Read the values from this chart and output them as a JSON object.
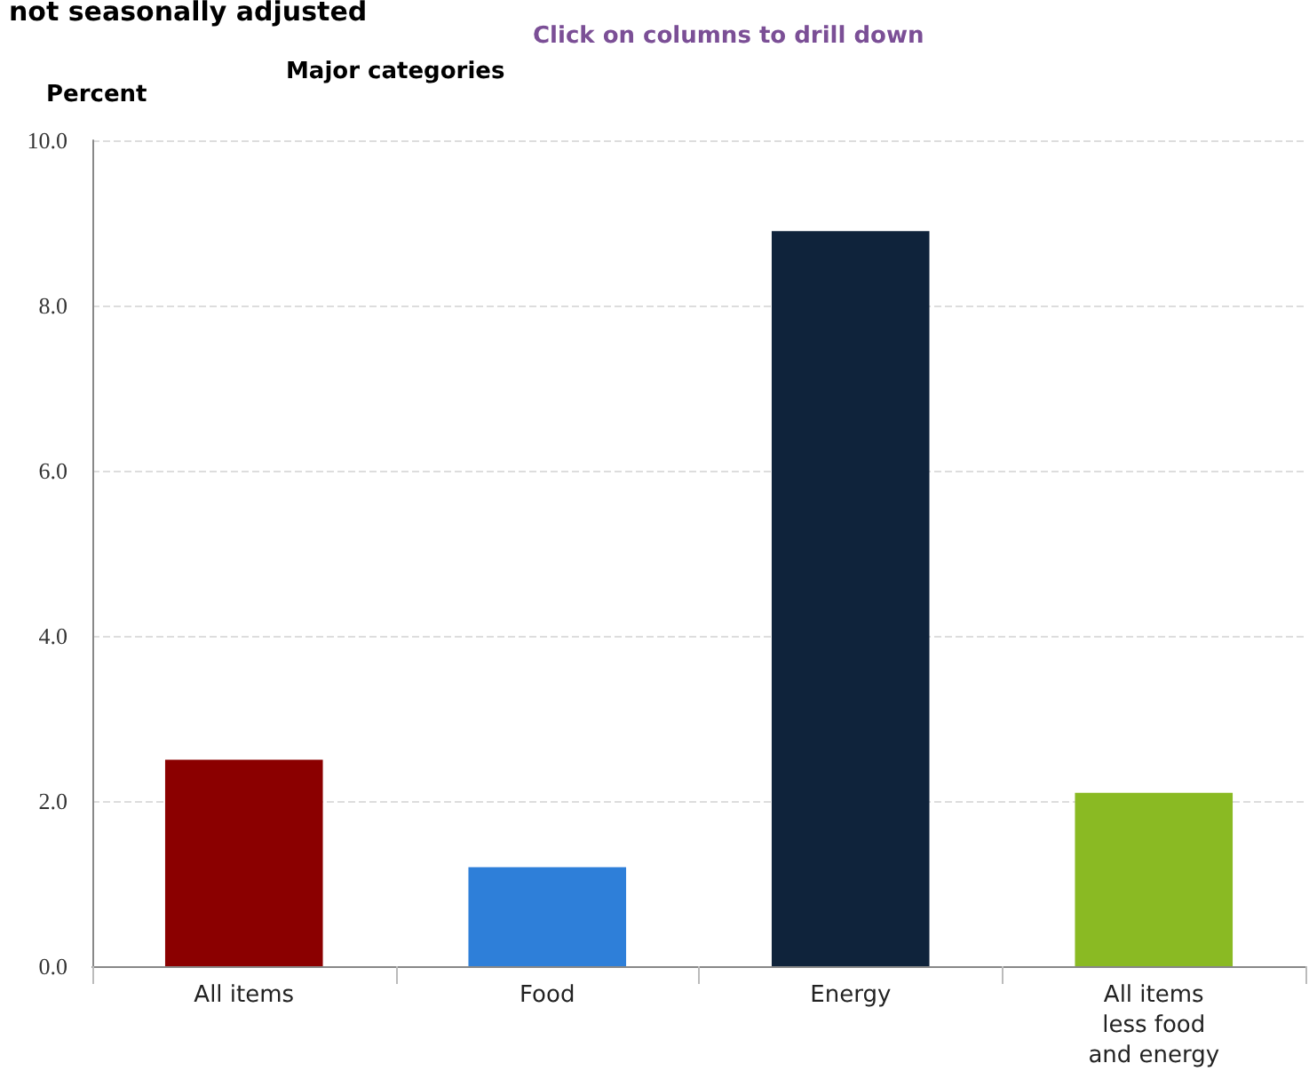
{
  "chart_data": {
    "type": "bar",
    "title": "not seasonally adjusted",
    "subtitle": "Major categories",
    "annotations": [
      "Click on columns to drill down"
    ],
    "ylabel": "Percent",
    "categories": [
      "All items",
      "Food",
      "Energy",
      "All items\nless food\nand energy"
    ],
    "values": [
      2.5,
      1.2,
      8.9,
      2.1
    ],
    "colors": [
      "#8b0000",
      "#2e7fd9",
      "#0f233b",
      "#8aba23"
    ],
    "ylim": [
      0,
      10
    ],
    "yticks": [
      {
        "value": 0,
        "label": "0.0"
      },
      {
        "value": 2,
        "label": "2.0"
      },
      {
        "value": 4,
        "label": "4.0"
      },
      {
        "value": 6,
        "label": "6.0"
      },
      {
        "value": 8,
        "label": "8.0"
      },
      {
        "value": 10,
        "label": "10.0"
      }
    ],
    "grid": "y"
  }
}
